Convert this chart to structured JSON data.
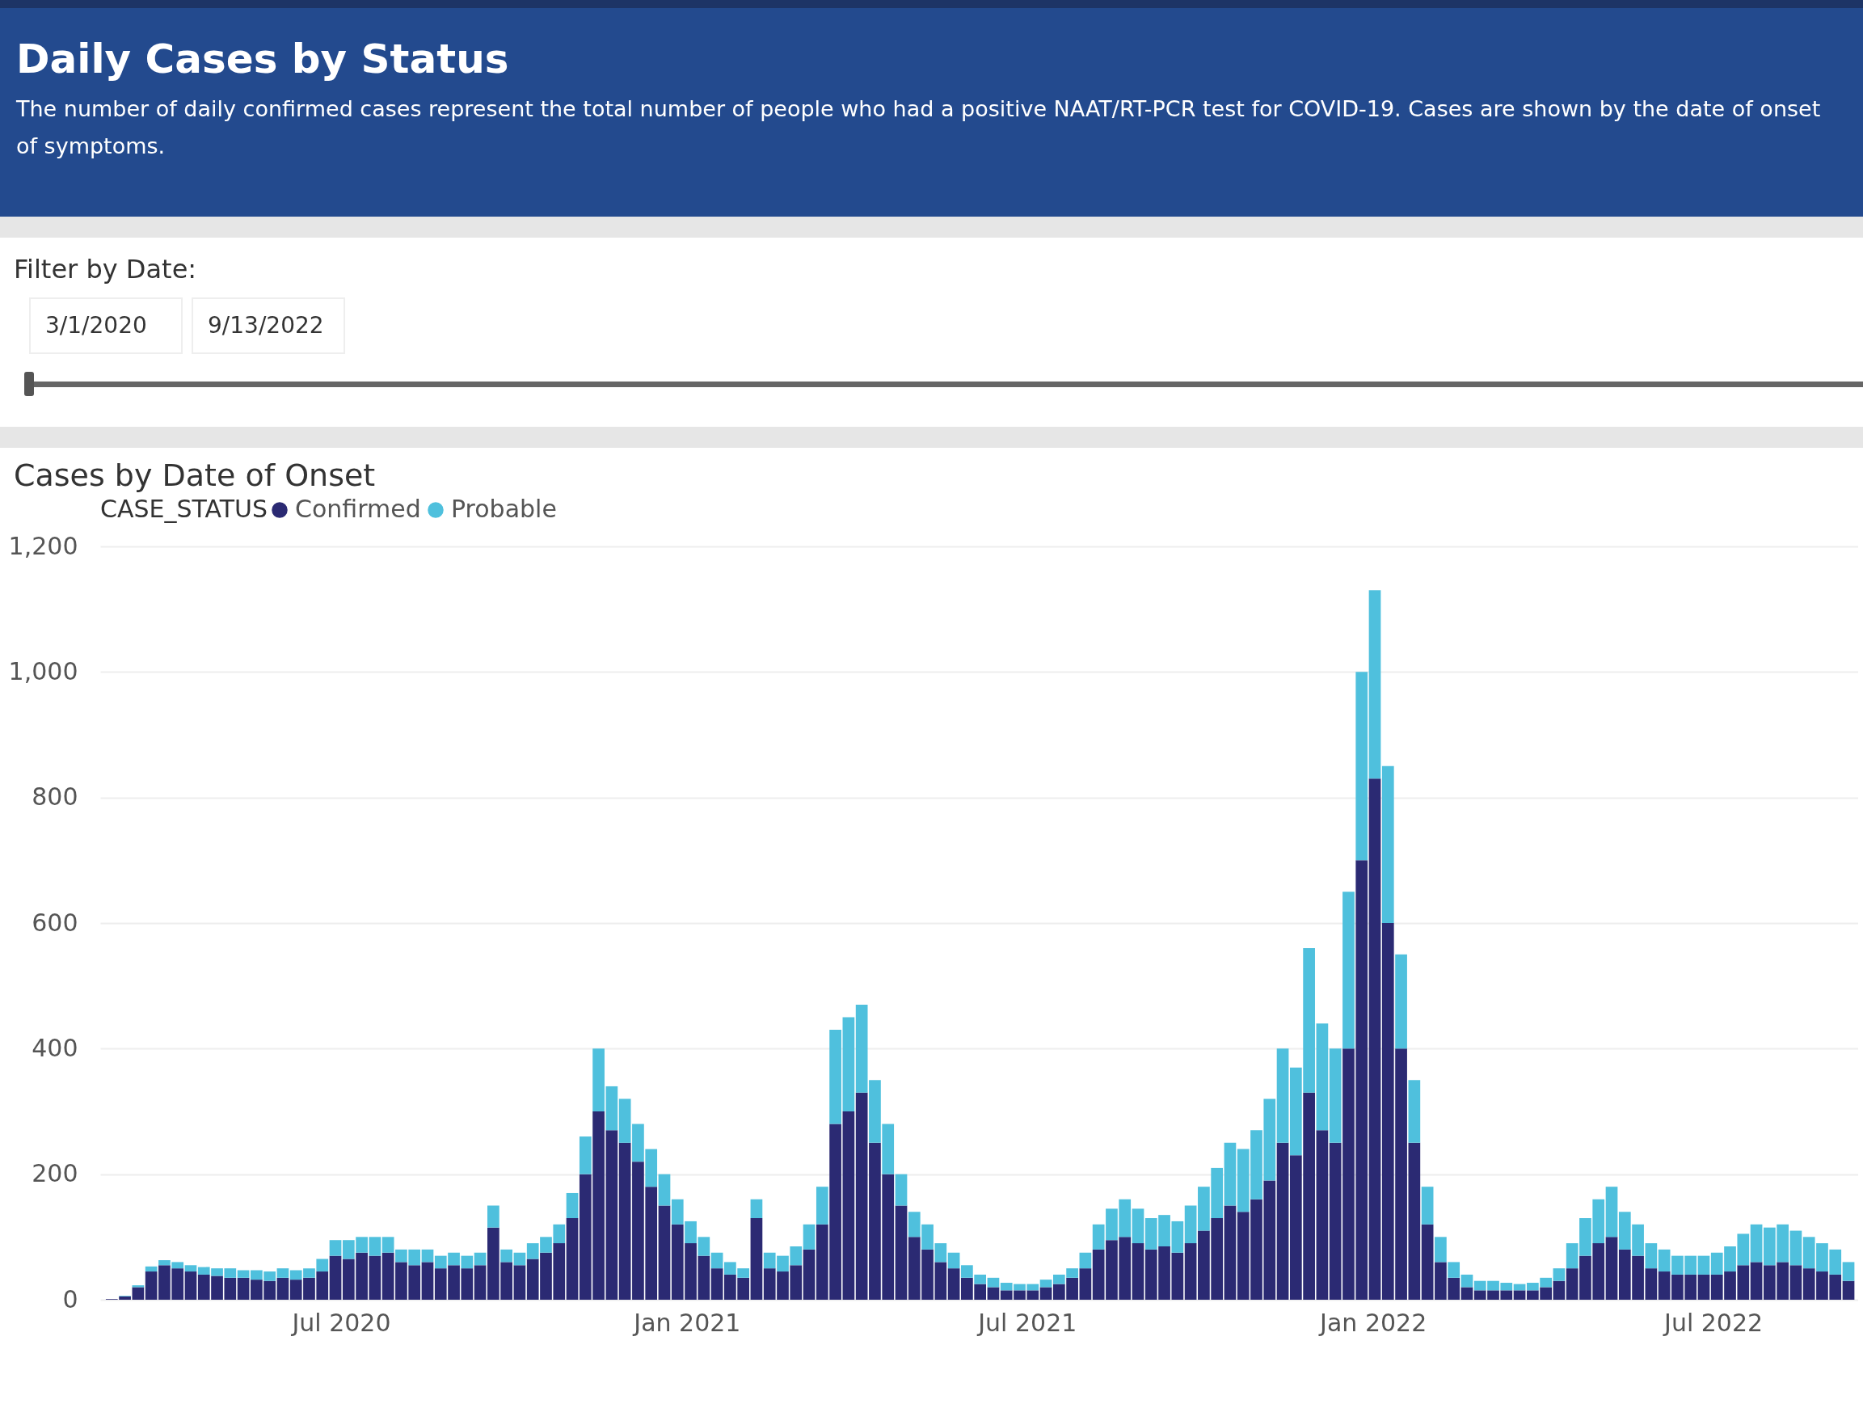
{
  "chart_data": {
    "type": "bar",
    "title": "Daily Cases by Status",
    "subtitle": "The number of daily confirmed cases represent the total number of people who had a positive NAAT/RT-PCR test for COVID-19. Cases are shown by the date of onset of symptoms.",
    "annotations": [
      "Filter by Date:",
      "3/1/2020",
      "9/13/2022",
      "Cases by Date of Onset"
    ],
    "legend_title": "CASE_STATUS",
    "x": [
      "2020-03-01",
      "2020-03-08",
      "2020-03-15",
      "2020-03-22",
      "2020-03-29",
      "2020-04-05",
      "2020-04-12",
      "2020-04-19",
      "2020-04-26",
      "2020-05-03",
      "2020-05-10",
      "2020-05-17",
      "2020-05-24",
      "2020-05-31",
      "2020-06-07",
      "2020-06-14",
      "2020-06-21",
      "2020-06-28",
      "2020-07-05",
      "2020-07-12",
      "2020-07-19",
      "2020-07-26",
      "2020-08-02",
      "2020-08-09",
      "2020-08-16",
      "2020-08-23",
      "2020-08-30",
      "2020-09-06",
      "2020-09-13",
      "2020-09-20",
      "2020-09-27",
      "2020-10-04",
      "2020-10-11",
      "2020-10-18",
      "2020-10-25",
      "2020-11-01",
      "2020-11-08",
      "2020-11-15",
      "2020-11-22",
      "2020-11-29",
      "2020-12-06",
      "2020-12-13",
      "2020-12-20",
      "2020-12-27",
      "2021-01-03",
      "2021-01-10",
      "2021-01-17",
      "2021-01-24",
      "2021-01-31",
      "2021-02-07",
      "2021-02-14",
      "2021-02-21",
      "2021-02-28",
      "2021-03-07",
      "2021-03-14",
      "2021-03-21",
      "2021-03-28",
      "2021-04-04",
      "2021-04-11",
      "2021-04-18",
      "2021-04-25",
      "2021-05-02",
      "2021-05-09",
      "2021-05-16",
      "2021-05-23",
      "2021-05-30",
      "2021-06-06",
      "2021-06-13",
      "2021-06-20",
      "2021-06-27",
      "2021-07-04",
      "2021-07-11",
      "2021-07-18",
      "2021-07-25",
      "2021-08-01",
      "2021-08-08",
      "2021-08-15",
      "2021-08-22",
      "2021-08-29",
      "2021-09-05",
      "2021-09-12",
      "2021-09-19",
      "2021-09-26",
      "2021-10-03",
      "2021-10-10",
      "2021-10-17",
      "2021-10-24",
      "2021-10-31",
      "2021-11-07",
      "2021-11-14",
      "2021-11-21",
      "2021-11-28",
      "2021-12-05",
      "2021-12-12",
      "2021-12-19",
      "2021-12-26",
      "2022-01-02",
      "2022-01-09",
      "2022-01-16",
      "2022-01-23",
      "2022-01-30",
      "2022-02-06",
      "2022-02-13",
      "2022-02-20",
      "2022-02-27",
      "2022-03-06",
      "2022-03-13",
      "2022-03-20",
      "2022-03-27",
      "2022-04-03",
      "2022-04-10",
      "2022-04-17",
      "2022-04-24",
      "2022-05-01",
      "2022-05-08",
      "2022-05-15",
      "2022-05-22",
      "2022-05-29",
      "2022-06-05",
      "2022-06-12",
      "2022-06-19",
      "2022-06-26",
      "2022-07-03",
      "2022-07-10",
      "2022-07-17",
      "2022-07-24",
      "2022-07-31",
      "2022-08-07",
      "2022-08-14",
      "2022-08-21",
      "2022-08-28",
      "2022-09-04",
      "2022-09-11"
    ],
    "series": [
      {
        "name": "Confirmed",
        "color": "#2b2a73",
        "values": [
          1,
          5,
          20,
          45,
          55,
          50,
          45,
          40,
          38,
          35,
          35,
          32,
          30,
          35,
          32,
          35,
          45,
          70,
          65,
          75,
          70,
          75,
          60,
          55,
          60,
          50,
          55,
          50,
          55,
          115,
          60,
          55,
          65,
          75,
          90,
          130,
          200,
          300,
          270,
          250,
          220,
          180,
          150,
          120,
          90,
          70,
          50,
          40,
          35,
          130,
          50,
          45,
          55,
          80,
          120,
          280,
          300,
          330,
          250,
          200,
          150,
          100,
          80,
          60,
          50,
          35,
          25,
          20,
          15,
          15,
          15,
          20,
          25,
          35,
          50,
          80,
          95,
          100,
          90,
          80,
          85,
          75,
          90,
          110,
          130,
          150,
          140,
          160,
          190,
          250,
          230,
          330,
          270,
          250,
          400,
          700,
          830,
          600,
          400,
          250,
          120,
          60,
          35,
          20,
          15,
          15,
          15,
          15,
          15,
          20,
          30,
          50,
          70,
          90,
          100,
          80,
          70,
          50,
          45,
          40,
          40,
          40,
          40,
          45,
          55,
          60,
          55,
          60,
          55,
          50,
          45,
          40,
          30
        ]
      },
      {
        "name": "Probable",
        "color": "#4fc0dd",
        "values": [
          0,
          1,
          3,
          8,
          8,
          10,
          10,
          12,
          12,
          15,
          12,
          15,
          15,
          15,
          15,
          15,
          20,
          25,
          30,
          25,
          30,
          25,
          20,
          25,
          20,
          20,
          20,
          20,
          20,
          35,
          20,
          20,
          25,
          25,
          30,
          40,
          60,
          100,
          70,
          70,
          60,
          60,
          50,
          40,
          35,
          30,
          25,
          20,
          15,
          30,
          25,
          25,
          30,
          40,
          60,
          150,
          150,
          140,
          100,
          80,
          50,
          40,
          40,
          30,
          25,
          20,
          15,
          15,
          12,
          10,
          10,
          12,
          15,
          15,
          25,
          40,
          50,
          60,
          55,
          50,
          50,
          50,
          60,
          70,
          80,
          100,
          100,
          110,
          130,
          150,
          140,
          230,
          170,
          150,
          250,
          300,
          300,
          250,
          150,
          100,
          60,
          40,
          25,
          20,
          15,
          15,
          12,
          10,
          12,
          15,
          20,
          40,
          60,
          70,
          80,
          60,
          50,
          40,
          35,
          30,
          30,
          30,
          35,
          40,
          50,
          60,
          60,
          60,
          55,
          50,
          45,
          40,
          30
        ]
      }
    ],
    "stacked": true,
    "xlim": [
      "2020-02-26",
      "2022-09-14"
    ],
    "xticks": [
      {
        "value": "2020-07-01",
        "label": "Jul 2020"
      },
      {
        "value": "2021-01-01",
        "label": "Jan 2021"
      },
      {
        "value": "2021-07-01",
        "label": "Jul 2021"
      },
      {
        "value": "2022-01-01",
        "label": "Jan 2022"
      },
      {
        "value": "2022-07-01",
        "label": "Jul 2022"
      }
    ],
    "ylim": [
      0,
      1200
    ],
    "yticks": [
      0,
      200,
      400,
      600,
      800,
      {
        "value": 1000,
        "label": "1,000"
      },
      {
        "value": 1200,
        "label": "1,200"
      }
    ],
    "grid": "y",
    "legend": "top left"
  }
}
